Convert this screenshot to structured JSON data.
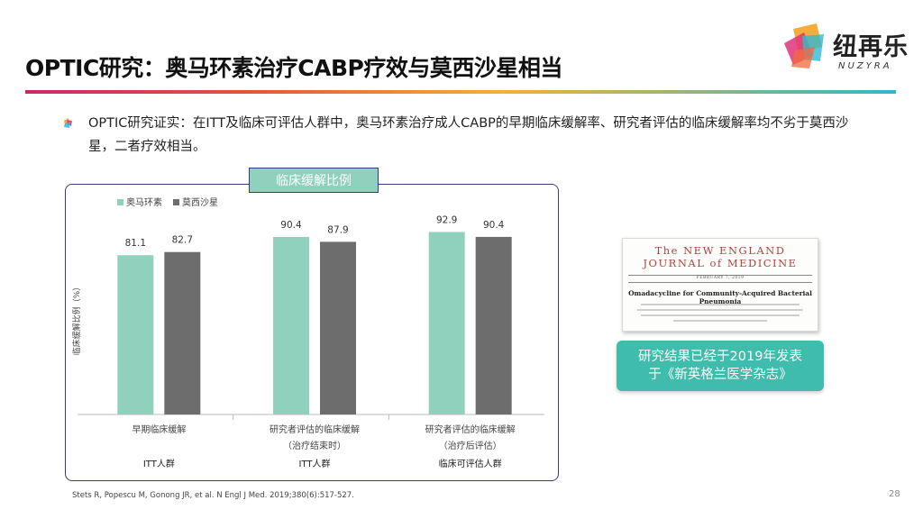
{
  "title": "OPTIC研究：奥马环素治疗CABP疗效与莫西沙星相当",
  "logo": {
    "cn": "纽再乐",
    "en": "NUZYRA"
  },
  "bullet": "OPTIC研究证实：在ITT及临床可评估人群中，奥马环素治疗成人CABP的早期临床缓解率、研究者评估的临床缓解率均不劣于莫西沙星，二者疗效相当。",
  "chart_label": "临床缓解比例",
  "chart_data": {
    "type": "bar",
    "title": "临床缓解比例",
    "ylabel": "临床缓解比例（%）",
    "xlabel": "",
    "ylim": [
      0,
      100
    ],
    "grid": false,
    "legend": "top-left",
    "categories": [
      {
        "lines": [
          "早期临床缓解"
        ],
        "group": "ITT人群"
      },
      {
        "lines": [
          "研究者评估的临床缓解",
          "（治疗结束时）"
        ],
        "group": "ITT人群"
      },
      {
        "lines": [
          "研究者评估的临床缓解",
          "（治疗后评估）"
        ],
        "group": "临床可评估人群"
      }
    ],
    "series": [
      {
        "name": "奥马环素",
        "color": "#8fd1bd",
        "values": [
          81.1,
          90.4,
          92.9
        ]
      },
      {
        "name": "莫西沙星",
        "color": "#6d6d6d",
        "values": [
          82.7,
          87.9,
          90.4
        ]
      }
    ]
  },
  "nejm": {
    "title_line1": "The NEW ENGLAND",
    "title_line2": "JOURNAL of MEDICINE",
    "date": "FEBRUARY 7, 2019",
    "article": "Omadacycline for Community-Acquired Bacterial Pneumonia"
  },
  "publication_box": {
    "line1": "研究结果已经于2019年发表",
    "line2": "于《新英格兰医学杂志》"
  },
  "reference": "Stets R, Popescu M, Gonong JR, et al. N Engl J Med. 2019;380(6):517-527.",
  "page_number": "28"
}
